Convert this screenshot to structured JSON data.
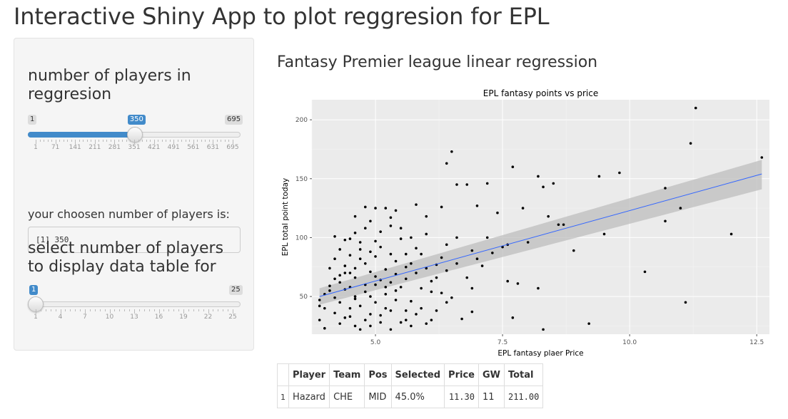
{
  "app_title": "Interactive Shiny App to plot reggresion for EPL",
  "sidebar": {
    "slider1": {
      "heading": "number of players in reggresion",
      "min_label": "1",
      "max_label": "695",
      "value_label": "350",
      "min": 1,
      "max": 695,
      "value": 350,
      "ticks": [
        "1",
        "71",
        "141",
        "211",
        "281",
        "351",
        "421",
        "491",
        "561",
        "631",
        "695"
      ]
    },
    "output_label": "your choosen number of players is:",
    "output_text": "[1] 350",
    "slider2": {
      "heading": "select number of players to display data table for",
      "min_label": "1",
      "max_label": "25",
      "value_label": "1",
      "min": 1,
      "max": 25,
      "value": 1,
      "ticks": [
        "1",
        "4",
        "7",
        "10",
        "13",
        "16",
        "19",
        "22",
        "25"
      ]
    }
  },
  "main": {
    "heading": "Fantasy Premier league linear regression"
  },
  "colors": {
    "accent": "#428bca",
    "plot_bg": "#ebebeb",
    "fit_line": "#3366ff",
    "band": "#bdbdbd"
  },
  "chart_data": {
    "type": "scatter",
    "title": "EPL fantasy points vs price",
    "xlabel": "EPL fantasy plaer Price",
    "ylabel": "EPL total point today",
    "xlim": [
      3.75,
      12.75
    ],
    "ylim": [
      18,
      217
    ],
    "x_ticks": [
      5.0,
      7.5,
      10.0,
      12.5
    ],
    "x_tick_labels": [
      "5.0",
      "7.5",
      "10.0",
      "12.5"
    ],
    "y_ticks": [
      50,
      100,
      150,
      200
    ],
    "y_tick_labels": [
      "50",
      "100",
      "150",
      "200"
    ],
    "grid": true,
    "regression": {
      "x": [
        3.9,
        12.6
      ],
      "y": [
        50,
        154
      ]
    },
    "confidence_band": {
      "upper_at_min": 57,
      "lower_at_min": 43,
      "upper_at_max": 166,
      "lower_at_max": 141
    },
    "points": [
      [
        11.3,
        210
      ],
      [
        11.2,
        180
      ],
      [
        12.6,
        168
      ],
      [
        6.5,
        173
      ],
      [
        6.4,
        163
      ],
      [
        7.7,
        160
      ],
      [
        9.8,
        155
      ],
      [
        9.4,
        152
      ],
      [
        8.2,
        152
      ],
      [
        8.5,
        146
      ],
      [
        8.3,
        143
      ],
      [
        7.2,
        146
      ],
      [
        6.8,
        145
      ],
      [
        6.6,
        145
      ],
      [
        10.7,
        142
      ],
      [
        11.0,
        125
      ],
      [
        7.0,
        127
      ],
      [
        7.4,
        121
      ],
      [
        7.9,
        125
      ],
      [
        8.6,
        111
      ],
      [
        8.7,
        111
      ],
      [
        9.5,
        103
      ],
      [
        12.0,
        103
      ],
      [
        10.7,
        114
      ],
      [
        8.4,
        118
      ],
      [
        6.3,
        126
      ],
      [
        5.4,
        123
      ],
      [
        6.0,
        118
      ],
      [
        5.8,
        128
      ],
      [
        6.9,
        89
      ],
      [
        7.1,
        76
      ],
      [
        7.6,
        63
      ],
      [
        7.8,
        61
      ],
      [
        8.2,
        57
      ],
      [
        7.7,
        32
      ],
      [
        8.3,
        22
      ],
      [
        9.2,
        27
      ],
      [
        10.3,
        71
      ],
      [
        11.1,
        45
      ],
      [
        8.9,
        89
      ],
      [
        7.5,
        92
      ],
      [
        8.0,
        96
      ],
      [
        6.8,
        66
      ],
      [
        6.9,
        57
      ],
      [
        6.2,
        66
      ],
      [
        6.1,
        54
      ],
      [
        6.3,
        53
      ],
      [
        6.5,
        49
      ],
      [
        6.4,
        45
      ],
      [
        6.7,
        31
      ],
      [
        6.9,
        37
      ],
      [
        6.1,
        30
      ],
      [
        6.2,
        38
      ],
      [
        5.9,
        40
      ],
      [
        5.7,
        46
      ],
      [
        5.6,
        30
      ],
      [
        7.2,
        100
      ],
      [
        6.6,
        100
      ],
      [
        6.4,
        94
      ],
      [
        6.0,
        103
      ],
      [
        5.9,
        86
      ],
      [
        5.7,
        78
      ],
      [
        5.5,
        99
      ],
      [
        5.2,
        125
      ],
      [
        5.0,
        125
      ],
      [
        4.8,
        126
      ],
      [
        4.6,
        118
      ],
      [
        4.2,
        101
      ],
      [
        5.3,
        117
      ],
      [
        4.9,
        114
      ],
      [
        4.5,
        70
      ],
      [
        4.4,
        76
      ],
      [
        4.7,
        82
      ],
      [
        4.3,
        62
      ],
      [
        4.1,
        55
      ],
      [
        4.0,
        52
      ],
      [
        3.9,
        47
      ],
      [
        3.9,
        30
      ],
      [
        3.9,
        42
      ],
      [
        4.0,
        23
      ],
      [
        4.2,
        36
      ],
      [
        4.3,
        45
      ],
      [
        4.4,
        32
      ],
      [
        4.6,
        25
      ],
      [
        4.8,
        30
      ],
      [
        5.1,
        28
      ],
      [
        5.3,
        22
      ],
      [
        5.2,
        40
      ],
      [
        5.0,
        45
      ],
      [
        4.9,
        35
      ],
      [
        4.6,
        48
      ],
      [
        4.5,
        58
      ],
      [
        4.8,
        60
      ],
      [
        5.0,
        67
      ],
      [
        5.2,
        73
      ],
      [
        5.4,
        80
      ],
      [
        5.6,
        86
      ],
      [
        5.8,
        91
      ],
      [
        5.1,
        92
      ],
      [
        4.9,
        88
      ],
      [
        4.7,
        96
      ],
      [
        4.5,
        99
      ],
      [
        4.3,
        90
      ],
      [
        4.2,
        82
      ],
      [
        4.6,
        66
      ],
      [
        5.5,
        58
      ],
      [
        5.4,
        55
      ],
      [
        5.3,
        62
      ],
      [
        5.6,
        65
      ],
      [
        5.8,
        70
      ],
      [
        6.0,
        74
      ],
      [
        6.2,
        77
      ],
      [
        6.3,
        83
      ],
      [
        5.7,
        100
      ],
      [
        5.5,
        108
      ],
      [
        5.3,
        110
      ],
      [
        5.1,
        105
      ],
      [
        4.8,
        108
      ],
      [
        4.6,
        104
      ],
      [
        4.4,
        98
      ],
      [
        4.1,
        74
      ],
      [
        4.2,
        65
      ],
      [
        4.5,
        40
      ],
      [
        4.7,
        42
      ],
      [
        4.9,
        50
      ],
      [
        5.2,
        52
      ],
      [
        5.4,
        47
      ],
      [
        5.6,
        38
      ],
      [
        5.8,
        35
      ],
      [
        5.9,
        57
      ],
      [
        6.1,
        63
      ],
      [
        6.4,
        72
      ],
      [
        6.6,
        78
      ],
      [
        7.0,
        82
      ],
      [
        7.3,
        87
      ],
      [
        7.6,
        94
      ],
      [
        5.0,
        84
      ],
      [
        4.8,
        78
      ],
      [
        4.4,
        70
      ],
      [
        4.1,
        59
      ],
      [
        4.0,
        40
      ],
      [
        4.3,
        27
      ],
      [
        4.5,
        33
      ],
      [
        4.7,
        22
      ],
      [
        4.9,
        25
      ],
      [
        5.1,
        34
      ],
      [
        5.3,
        38
      ],
      [
        5.5,
        28
      ],
      [
        5.7,
        25
      ],
      [
        6.0,
        27
      ],
      [
        5.2,
        58
      ],
      [
        5.0,
        60
      ],
      [
        4.8,
        54
      ],
      [
        4.6,
        50
      ],
      [
        4.4,
        56
      ],
      [
        4.2,
        49
      ],
      [
        4.3,
        68
      ],
      [
        4.6,
        74
      ],
      [
        4.9,
        71
      ],
      [
        5.1,
        64
      ],
      [
        5.4,
        69
      ],
      [
        5.6,
        75
      ],
      [
        5.3,
        86
      ],
      [
        5.0,
        97
      ],
      [
        4.7,
        90
      ],
      [
        4.5,
        85
      ]
    ]
  }
}
